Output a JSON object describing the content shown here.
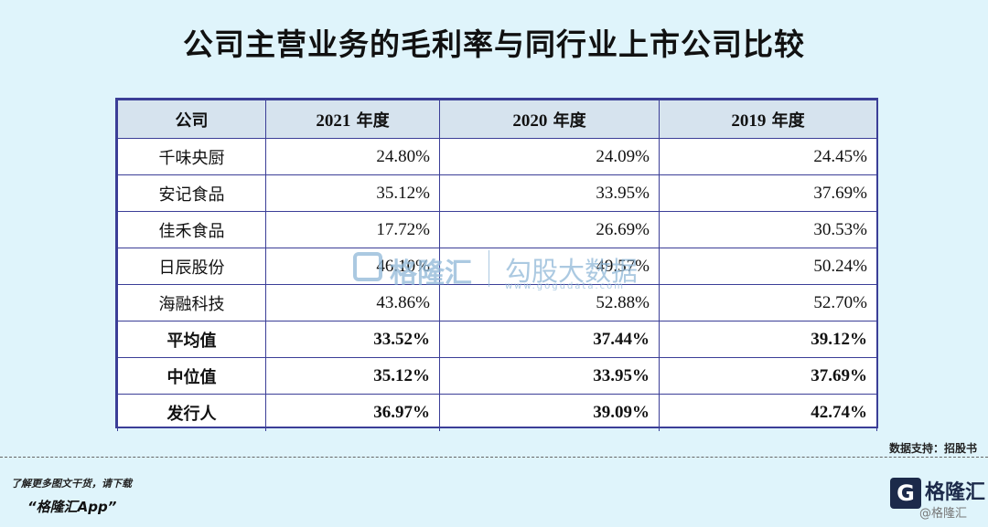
{
  "title": "公司主营业务的毛利率与同行业上市公司比较",
  "table": {
    "headers": {
      "company": "公司",
      "y2021": "2021",
      "y2020": "2020",
      "y2019": "2019",
      "year_suffix": "年度"
    },
    "rows": [
      {
        "name": "千味央厨",
        "v2021": "24.80%",
        "v2020": "24.09%",
        "v2019": "24.45%"
      },
      {
        "name": "安记食品",
        "v2021": "35.12%",
        "v2020": "33.95%",
        "v2019": "37.69%"
      },
      {
        "name": "佳禾食品",
        "v2021": "17.72%",
        "v2020": "26.69%",
        "v2019": "30.53%"
      },
      {
        "name": "日辰股份",
        "v2021": "46.10%",
        "v2020": "49.57%",
        "v2019": "50.24%"
      },
      {
        "name": "海融科技",
        "v2021": "43.86%",
        "v2020": "52.88%",
        "v2019": "52.70%"
      },
      {
        "name": "平均值",
        "v2021": "33.52%",
        "v2020": "37.44%",
        "v2019": "39.12%"
      },
      {
        "name": "中位值",
        "v2021": "35.12%",
        "v2020": "33.95%",
        "v2019": "37.69%"
      },
      {
        "name": "发行人",
        "v2021": "36.97%",
        "v2020": "39.09%",
        "v2019": "42.74%"
      }
    ]
  },
  "watermark": {
    "brand": "格隆汇",
    "site": "勾股大数据",
    "url": "www.gogudata.com"
  },
  "source": "数据支持：招股书",
  "footer": {
    "line1": "了解更多图文干货，请下载",
    "line2": "“格隆汇App”"
  },
  "brand": {
    "icon_letter": "G",
    "name": "格隆汇",
    "sub": "@格隆汇"
  },
  "colors": {
    "background": "#dff4fb",
    "table_border": "#3b3e97",
    "header_fill": "#d6e3ee"
  }
}
